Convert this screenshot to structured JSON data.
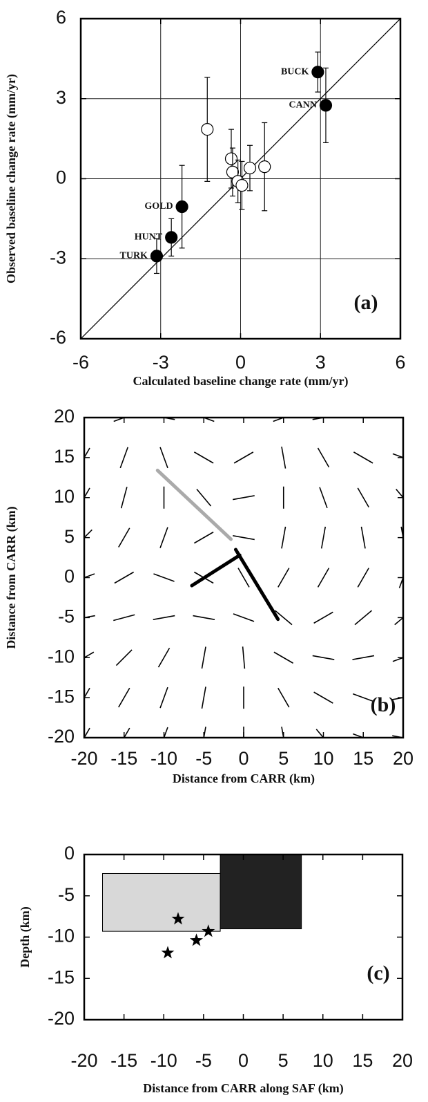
{
  "chart_data": [
    {
      "type": "scatter",
      "panel_label": "(a)",
      "xlabel": "Calculated baseline change rate (mm/yr)",
      "ylabel": "Observed baseline change rate (mm/yr)",
      "xlim": [
        -6,
        6
      ],
      "ylim": [
        -6,
        6
      ],
      "xticks": [
        -6,
        -3,
        0,
        3,
        6
      ],
      "yticks": [
        -6,
        -3,
        0,
        3,
        6
      ],
      "grid": true,
      "one_to_one_line": true,
      "series": [
        {
          "marker": "filled",
          "color": "#000000",
          "labels": [
            "BUCK",
            "CANN",
            "GOLD",
            "HUNT",
            "TURK"
          ],
          "x": [
            2.9,
            3.2,
            -2.2,
            -2.6,
            -3.15
          ],
          "y": [
            4.0,
            2.75,
            -1.05,
            -2.2,
            -2.9
          ],
          "errors": [
            0.75,
            1.4,
            1.55,
            0.7,
            0.65
          ]
        },
        {
          "marker": "open",
          "color": "#000000",
          "x": [
            -1.25,
            -0.35,
            -0.3,
            -0.1,
            0.05,
            0.35,
            0.9
          ],
          "y": [
            1.85,
            0.75,
            0.25,
            -0.1,
            -0.25,
            0.4,
            0.45
          ],
          "errors": [
            1.95,
            1.1,
            0.9,
            0.8,
            0.9,
            0.85,
            1.65
          ]
        }
      ]
    },
    {
      "type": "vector_field",
      "panel_label": "(b)",
      "xlabel": "Distance from CARR (km)",
      "ylabel": "Distance from CARR (km)",
      "xlim": [
        -20,
        20
      ],
      "ylim": [
        -20,
        20
      ],
      "xticks": [
        -20,
        -15,
        -10,
        -5,
        0,
        5,
        10,
        15,
        20
      ],
      "yticks": [
        -20,
        -15,
        -10,
        -5,
        0,
        5,
        10,
        15,
        20
      ],
      "grid_x": [
        -20,
        -15,
        -10,
        -5,
        0,
        5,
        10,
        15,
        20
      ],
      "grid_y": [
        20,
        15,
        10,
        5,
        0,
        -5,
        -10,
        -15,
        -20
      ],
      "angles": [
        [
          30,
          20,
          170,
          160,
          0,
          20,
          10,
          0,
          0
        ],
        [
          60,
          70,
          110,
          150,
          30,
          100,
          120,
          150,
          160
        ],
        [
          60,
          75,
          90,
          130,
          10,
          90,
          110,
          120,
          130
        ],
        [
          45,
          60,
          70,
          30,
          170,
          80,
          80,
          100,
          100
        ],
        [
          20,
          30,
          160,
          150,
          120,
          60,
          60,
          60,
          70
        ],
        [
          10,
          15,
          10,
          170,
          160,
          140,
          30,
          40,
          40
        ],
        [
          30,
          45,
          60,
          80,
          95,
          150,
          170,
          10,
          20
        ],
        [
          60,
          60,
          70,
          80,
          90,
          120,
          150,
          160,
          10
        ],
        [
          60,
          60,
          70,
          80,
          90,
          100,
          130,
          160,
          170
        ]
      ],
      "faults": [
        {
          "color": "#aaaaaa",
          "x": [
            -10.8,
            -1.6
          ],
          "y": [
            13.4,
            4.8
          ]
        },
        {
          "color": "#000000",
          "x": [
            -1.0,
            4.3
          ],
          "y": [
            3.5,
            -5.2
          ]
        },
        {
          "color": "#000000",
          "x": [
            -6.5,
            -0.5
          ],
          "y": [
            -1.0,
            2.8
          ]
        }
      ]
    },
    {
      "type": "fault_section",
      "panel_label": "(c)",
      "xlabel": "Distance from CARR along SAF (km)",
      "ylabel": "Depth (km)",
      "xlim": [
        -20,
        20
      ],
      "ylim": [
        -20,
        0
      ],
      "xticks": [
        -20,
        -15,
        -10,
        -5,
        0,
        5,
        10,
        15,
        20
      ],
      "yticks": [
        0,
        -5,
        -10,
        -15,
        -20
      ],
      "patches": [
        {
          "color": "#d8d8d8",
          "x": [
            -17.7,
            -2.9
          ],
          "y": [
            -2.3,
            -9.3
          ]
        },
        {
          "color": "#222222",
          "x": [
            -2.9,
            7.3
          ],
          "y": [
            0,
            -9.0
          ]
        }
      ],
      "events": {
        "x": [
          -8.2,
          -4.4,
          -5.9,
          -9.5
        ],
        "y": [
          -7.8,
          -9.3,
          -10.4,
          -11.9
        ]
      }
    }
  ]
}
